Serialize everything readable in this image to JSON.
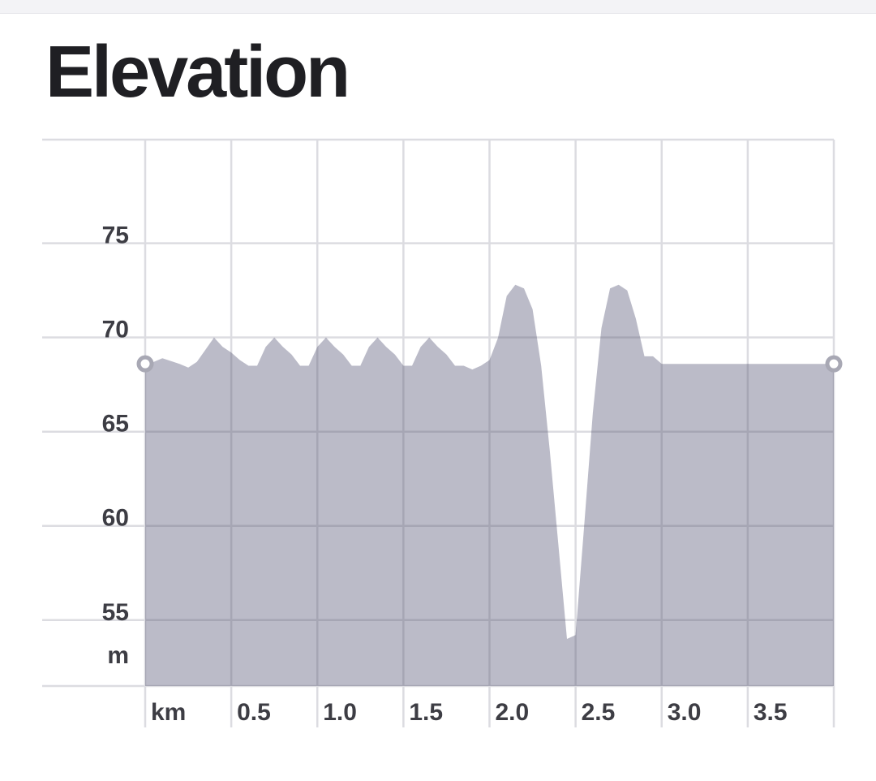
{
  "header": {
    "title": "Elevation"
  },
  "colors": {
    "area_fill": "#bbbbc8",
    "grid": "#dcdce1",
    "grid_over_area": "#a6a6b4",
    "axis_text": "#3d3d44",
    "endpoint_marker": "#ffffff",
    "endpoint_stroke": "#a8a8b4"
  },
  "chart_data": {
    "type": "area",
    "title": "Elevation",
    "xlabel": "km",
    "ylabel": "m",
    "xlim": [
      0,
      4
    ],
    "ylim": [
      51.5,
      80.5
    ],
    "grid": true,
    "legend": "none",
    "x_ticks": [
      0.5,
      1.0,
      1.5,
      2.0,
      2.5,
      3.0,
      3.5
    ],
    "x_tick_labels": [
      "km",
      "0.5",
      "1.0",
      "1.5",
      "2.0",
      "2.5",
      "3.0",
      "3.5"
    ],
    "y_ticks": [
      55,
      60,
      65,
      70,
      75
    ],
    "y_tick_labels": [
      "75",
      "70",
      "65",
      "60",
      "55",
      "m"
    ],
    "series": [
      {
        "x": [
          0,
          0.05,
          0.1,
          0.2,
          0.25,
          0.3,
          0.4,
          0.45,
          0.5,
          0.55,
          0.6,
          0.65,
          0.7,
          0.75,
          0.8,
          0.85,
          0.9,
          0.95,
          1.0,
          1.05,
          1.1,
          1.15,
          1.2,
          1.25,
          1.3,
          1.35,
          1.4,
          1.45,
          1.5,
          1.55,
          1.6,
          1.65,
          1.7,
          1.75,
          1.8,
          1.85,
          1.9,
          1.95,
          2.0,
          2.05,
          2.1,
          2.15,
          2.2,
          2.25,
          2.3,
          2.35,
          2.4,
          2.45,
          2.5,
          2.55,
          2.6,
          2.65,
          2.7,
          2.75,
          2.8,
          2.85,
          2.9,
          2.95,
          3.0,
          3.05,
          3.1,
          3.15,
          3.2,
          3.25,
          3.3,
          3.35,
          3.4,
          3.45,
          3.5,
          3.55,
          3.6,
          3.65,
          3.7,
          3.75,
          3.8,
          3.85,
          3.9,
          3.95,
          4.0
        ],
        "values": [
          68.6,
          68.7,
          68.9,
          68.6,
          68.4,
          68.7,
          70.0,
          69.5,
          69.2,
          68.8,
          68.5,
          68.5,
          69.5,
          70.0,
          69.5,
          69.1,
          68.5,
          68.5,
          69.5,
          70.0,
          69.5,
          69.1,
          68.5,
          68.5,
          69.5,
          70.0,
          69.5,
          69.1,
          68.5,
          68.5,
          69.5,
          70.0,
          69.5,
          69.1,
          68.5,
          68.5,
          68.3,
          68.5,
          68.8,
          70.0,
          72.2,
          72.8,
          72.6,
          71.5,
          68.5,
          64.0,
          59.0,
          54.0,
          54.2,
          60.0,
          66.0,
          70.5,
          72.6,
          72.8,
          72.5,
          71.0,
          69.0,
          69.0,
          68.6,
          68.6,
          68.6,
          68.6,
          68.6,
          68.6,
          68.6,
          68.6,
          68.6,
          68.6,
          68.6,
          68.6,
          68.6,
          68.6,
          68.6,
          68.6,
          68.6,
          68.6,
          68.6,
          68.6,
          68.6
        ]
      }
    ],
    "endpoints": [
      {
        "x": 0,
        "y": 68.6
      },
      {
        "x": 4.0,
        "y": 68.6
      }
    ]
  }
}
